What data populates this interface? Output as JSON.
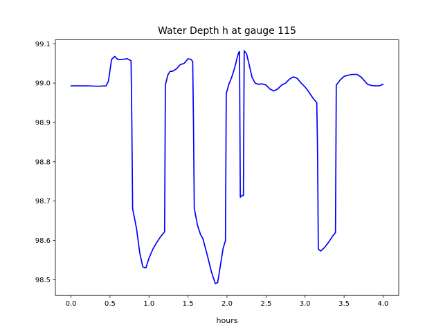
{
  "chart_data": {
    "type": "line",
    "title": "Water Depth h at gauge 115",
    "xlabel": "hours",
    "ylabel": "",
    "xlim": [
      -0.2,
      4.2
    ],
    "ylim": [
      98.46,
      99.11
    ],
    "xticks": [
      0.0,
      0.5,
      1.0,
      1.5,
      2.0,
      2.5,
      3.0,
      3.5,
      4.0
    ],
    "xtick_labels": [
      "0.0",
      "0.5",
      "1.0",
      "1.5",
      "2.0",
      "2.5",
      "3.0",
      "3.5",
      "4.0"
    ],
    "yticks": [
      98.5,
      98.6,
      98.7,
      98.8,
      98.9,
      99.0,
      99.1
    ],
    "ytick_labels": [
      "98.5",
      "98.6",
      "98.7",
      "98.8",
      "98.9",
      "99.0",
      "99.1"
    ],
    "grid": false,
    "series": [
      {
        "color": "#0000ff",
        "x": [
          0.0,
          0.2,
          0.35,
          0.45,
          0.48,
          0.52,
          0.56,
          0.6,
          0.65,
          0.72,
          0.77,
          0.78,
          0.79,
          0.84,
          0.88,
          0.92,
          0.96,
          1.0,
          1.05,
          1.1,
          1.15,
          1.2,
          1.21,
          1.24,
          1.27,
          1.3,
          1.35,
          1.4,
          1.45,
          1.5,
          1.54,
          1.56,
          1.57,
          1.58,
          1.62,
          1.66,
          1.69,
          1.75,
          1.8,
          1.85,
          1.88,
          1.91,
          1.95,
          1.98,
          1.99,
          2.02,
          2.06,
          2.1,
          2.13,
          2.15,
          2.16,
          2.17,
          2.2,
          2.21,
          2.22,
          2.25,
          2.28,
          2.32,
          2.36,
          2.4,
          2.45,
          2.5,
          2.55,
          2.6,
          2.65,
          2.7,
          2.75,
          2.8,
          2.85,
          2.9,
          2.95,
          3.0,
          3.05,
          3.1,
          3.15,
          3.16,
          3.17,
          3.2,
          3.25,
          3.3,
          3.35,
          3.39,
          3.4,
          3.45,
          3.5,
          3.55,
          3.6,
          3.67,
          3.72,
          3.8,
          3.85,
          3.9,
          3.95,
          4.0
        ],
        "y": [
          98.993,
          98.993,
          98.992,
          98.993,
          99.005,
          99.06,
          99.068,
          99.06,
          99.06,
          99.062,
          99.057,
          98.9,
          98.681,
          98.63,
          98.57,
          98.533,
          98.53,
          98.555,
          98.578,
          98.595,
          98.61,
          98.622,
          98.995,
          99.02,
          99.03,
          99.03,
          99.036,
          99.047,
          99.05,
          99.062,
          99.06,
          99.055,
          98.9,
          98.682,
          98.64,
          98.615,
          98.605,
          98.56,
          98.52,
          98.49,
          98.493,
          98.53,
          98.58,
          98.6,
          98.973,
          98.995,
          99.015,
          99.04,
          99.065,
          99.078,
          99.08,
          98.71,
          98.715,
          98.714,
          99.082,
          99.075,
          99.05,
          99.015,
          99.0,
          98.997,
          98.998,
          98.995,
          98.985,
          98.98,
          98.985,
          98.995,
          99.0,
          99.01,
          99.016,
          99.012,
          99.0,
          98.99,
          98.977,
          98.962,
          98.95,
          98.83,
          98.578,
          98.573,
          98.582,
          98.595,
          98.61,
          98.62,
          98.995,
          99.008,
          99.017,
          99.02,
          99.022,
          99.022,
          99.015,
          98.997,
          98.994,
          98.993,
          98.993,
          98.997
        ]
      }
    ]
  }
}
